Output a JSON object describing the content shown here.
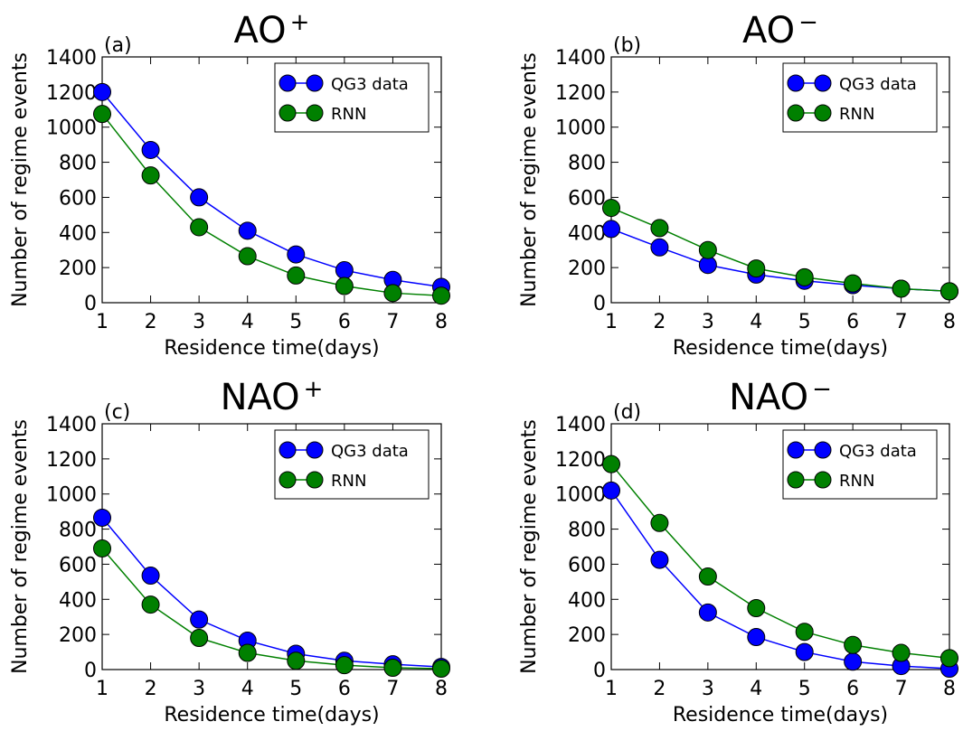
{
  "chart_data": [
    {
      "type": "line",
      "title": "AO",
      "title_sup": "+",
      "panel_label": "(a)",
      "xlabel": "Residence time(days)",
      "ylabel": "Number of regime events",
      "xlim": [
        1,
        8
      ],
      "ylim": [
        0,
        1400
      ],
      "x": [
        1,
        2,
        3,
        4,
        5,
        6,
        7,
        8
      ],
      "xticks": [
        "1",
        "2",
        "3",
        "4",
        "5",
        "6",
        "7",
        "8"
      ],
      "yticks": [
        "0",
        "200",
        "400",
        "600",
        "800",
        "1000",
        "1200",
        "1400"
      ],
      "legend_position": "top-right",
      "grid": false,
      "series": [
        {
          "name": "QG3 data",
          "color": "#0000ff",
          "values": [
            1200,
            870,
            600,
            410,
            275,
            185,
            130,
            90
          ]
        },
        {
          "name": "RNN",
          "color": "#008000",
          "values": [
            1075,
            725,
            430,
            265,
            155,
            95,
            55,
            40
          ]
        }
      ]
    },
    {
      "type": "line",
      "title": "AO",
      "title_sup": "−",
      "panel_label": "(b)",
      "xlabel": "Residence time(days)",
      "ylabel": "Number of regime events",
      "xlim": [
        1,
        8
      ],
      "ylim": [
        0,
        1400
      ],
      "x": [
        1,
        2,
        3,
        4,
        5,
        6,
        7,
        8
      ],
      "xticks": [
        "1",
        "2",
        "3",
        "4",
        "5",
        "6",
        "7",
        "8"
      ],
      "yticks": [
        "0",
        "200",
        "400",
        "600",
        "800",
        "1000",
        "1200",
        "1400"
      ],
      "legend_position": "top-right",
      "grid": false,
      "series": [
        {
          "name": "QG3 data",
          "color": "#0000ff",
          "values": [
            420,
            315,
            215,
            160,
            125,
            100,
            80,
            65
          ]
        },
        {
          "name": "RNN",
          "color": "#008000",
          "values": [
            540,
            425,
            300,
            195,
            145,
            110,
            80,
            65
          ]
        }
      ]
    },
    {
      "type": "line",
      "title": "NAO",
      "title_sup": "+",
      "panel_label": "(c)",
      "xlabel": "Residence time(days)",
      "ylabel": "Number of regime events",
      "xlim": [
        1,
        8
      ],
      "ylim": [
        0,
        1400
      ],
      "x": [
        1,
        2,
        3,
        4,
        5,
        6,
        7,
        8
      ],
      "xticks": [
        "1",
        "2",
        "3",
        "4",
        "5",
        "6",
        "7",
        "8"
      ],
      "yticks": [
        "0",
        "200",
        "400",
        "600",
        "800",
        "1000",
        "1200",
        "1400"
      ],
      "legend_position": "top-right",
      "grid": false,
      "series": [
        {
          "name": "QG3 data",
          "color": "#0000ff",
          "values": [
            865,
            535,
            285,
            165,
            90,
            50,
            30,
            15
          ]
        },
        {
          "name": "RNN",
          "color": "#008000",
          "values": [
            690,
            370,
            180,
            95,
            50,
            25,
            10,
            5
          ]
        }
      ]
    },
    {
      "type": "line",
      "title": "NAO",
      "title_sup": "−",
      "panel_label": "(d)",
      "xlabel": "Residence time(days)",
      "ylabel": "Number of regime events",
      "xlim": [
        1,
        8
      ],
      "ylim": [
        0,
        1400
      ],
      "x": [
        1,
        2,
        3,
        4,
        5,
        6,
        7,
        8
      ],
      "xticks": [
        "1",
        "2",
        "3",
        "4",
        "5",
        "6",
        "7",
        "8"
      ],
      "yticks": [
        "0",
        "200",
        "400",
        "600",
        "800",
        "1000",
        "1200",
        "1400"
      ],
      "legend_position": "top-right",
      "grid": false,
      "series": [
        {
          "name": "QG3 data",
          "color": "#0000ff",
          "values": [
            1020,
            625,
            325,
            185,
            100,
            45,
            20,
            5
          ]
        },
        {
          "name": "RNN",
          "color": "#008000",
          "values": [
            1170,
            835,
            530,
            350,
            215,
            140,
            95,
            65
          ]
        }
      ]
    }
  ]
}
